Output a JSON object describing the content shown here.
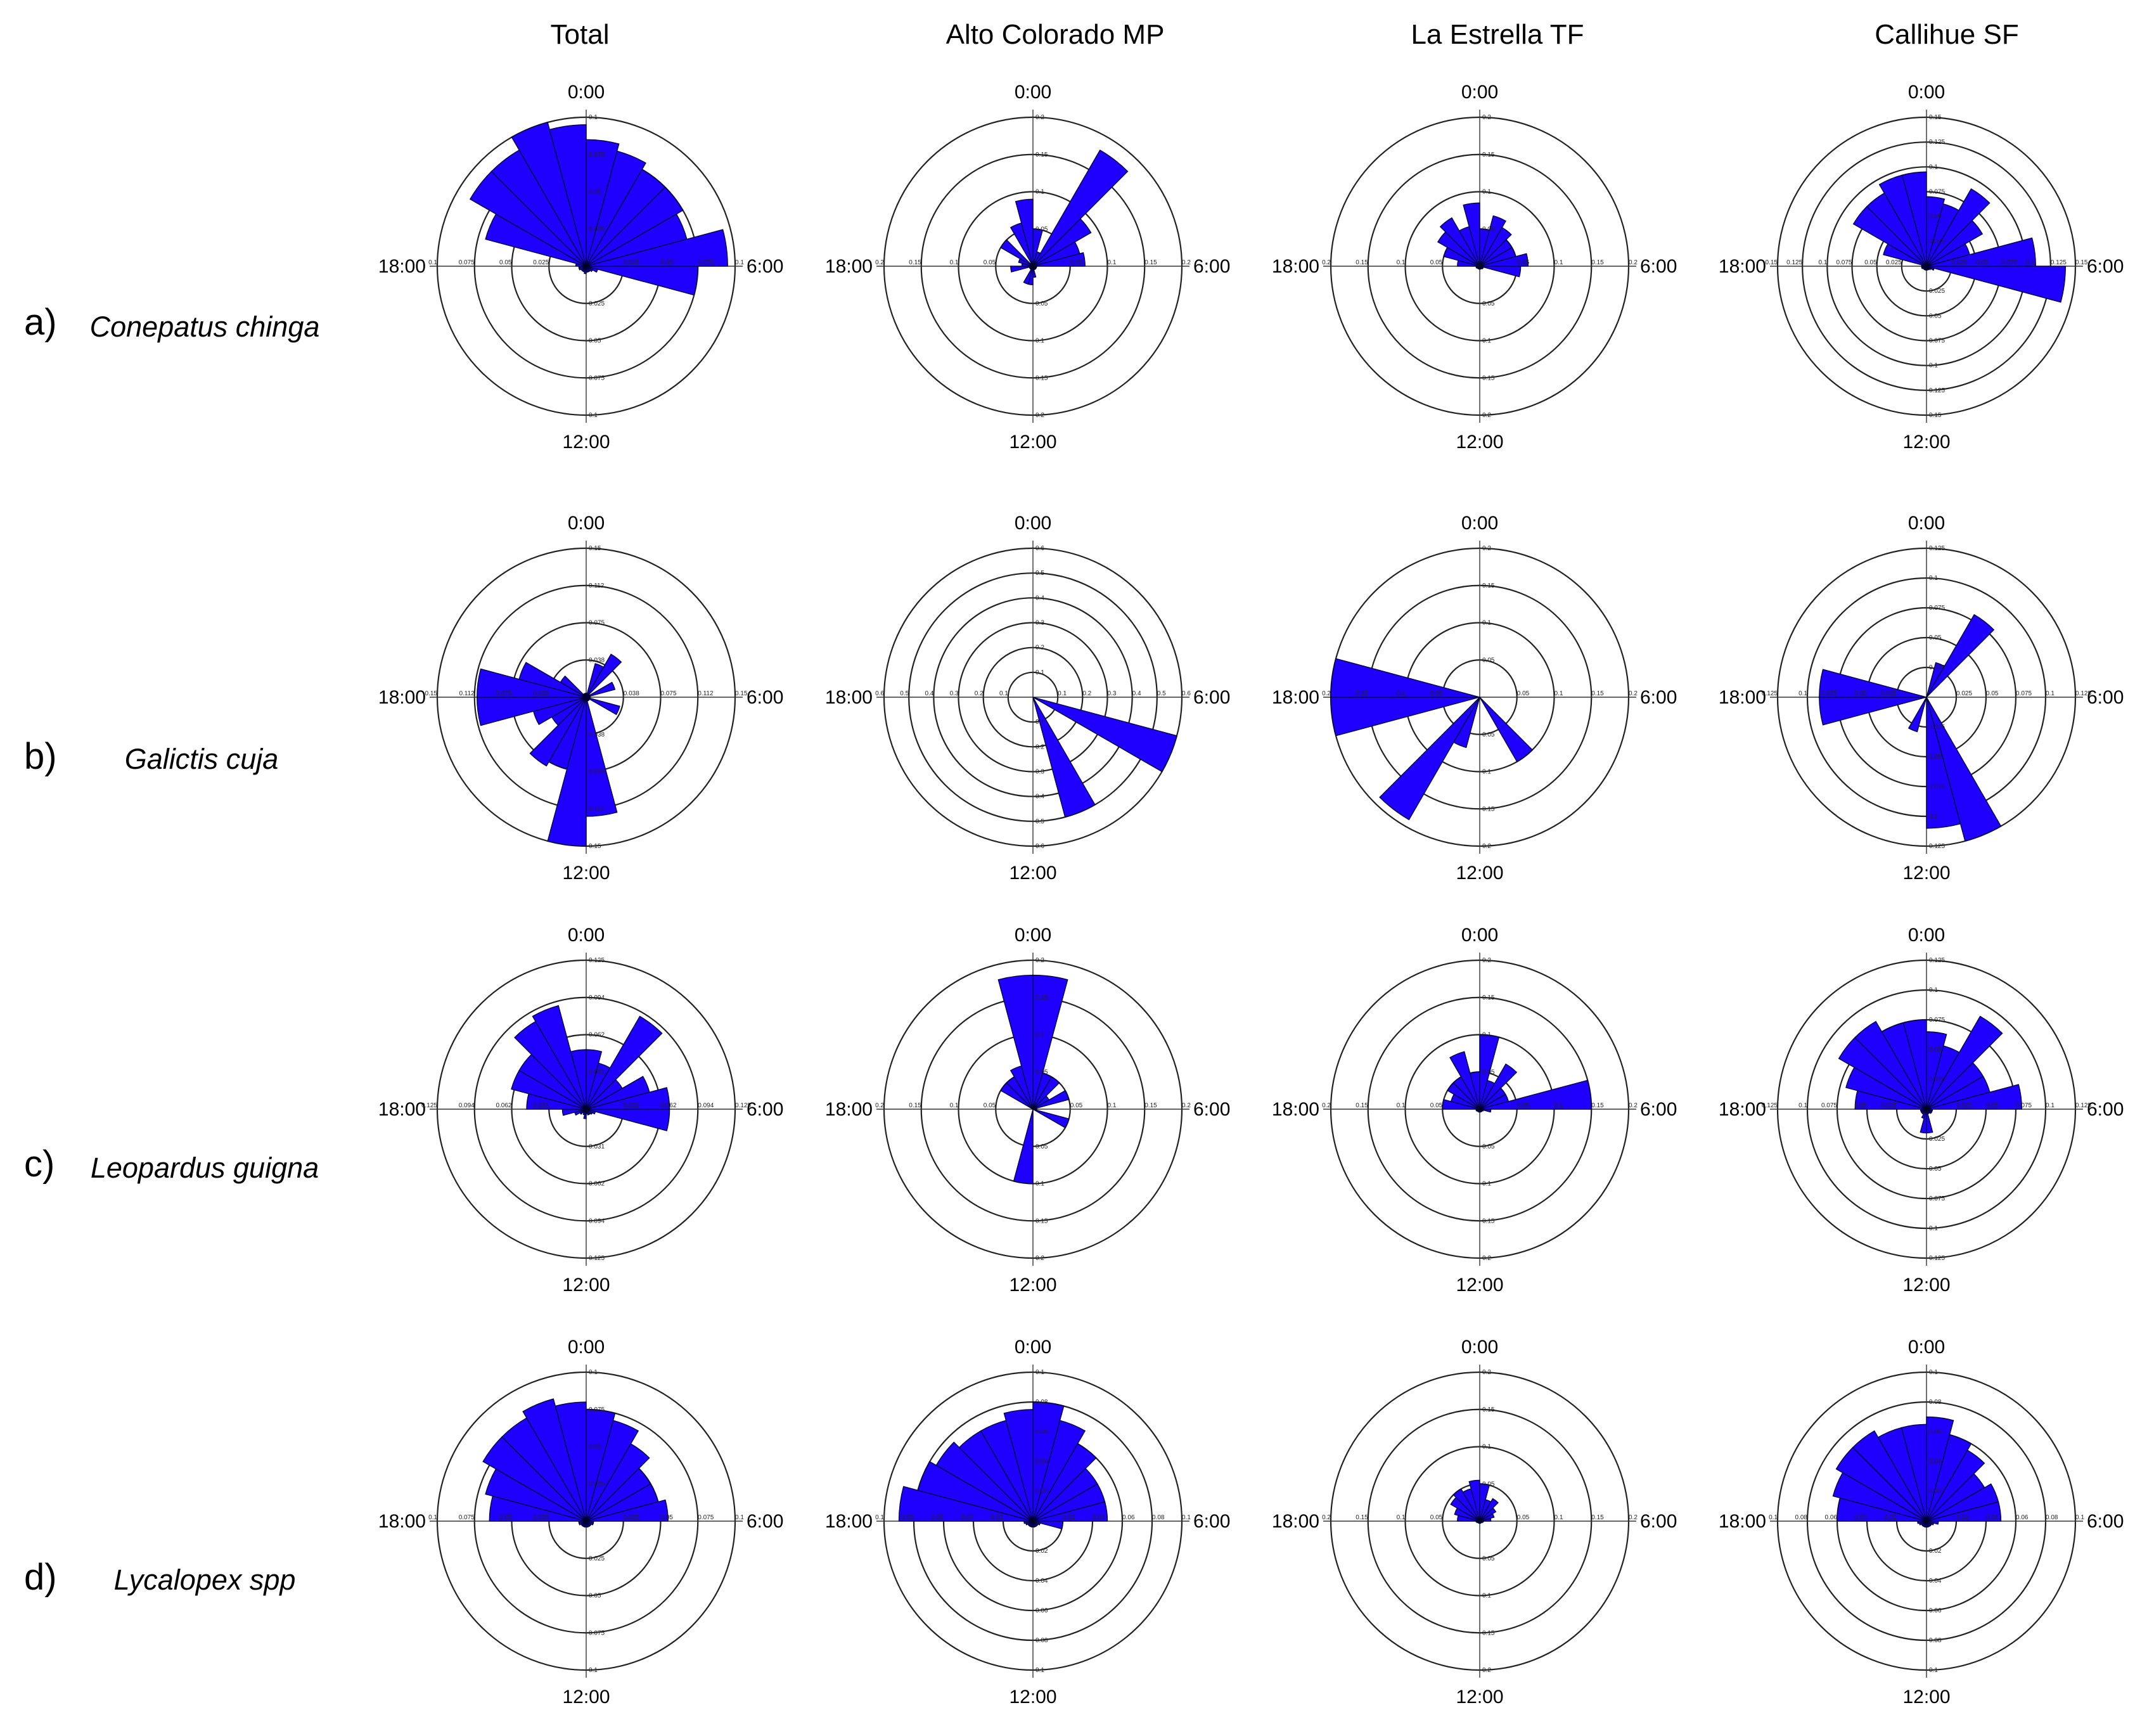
{
  "figure": {
    "columns": [
      "Total",
      "Alto Colorado MP",
      "La Estrella TF",
      "Callihue SF"
    ],
    "rows": [
      {
        "label": "a)",
        "species": "Conepatus chinga"
      },
      {
        "label": "b)",
        "species": "Galictis cuja"
      },
      {
        "label": "c)",
        "species": "Leopardus guigna"
      },
      {
        "label": "d)",
        "species": "Lycalopex spp"
      }
    ],
    "clock_labels": {
      "top": "0:00",
      "right": "6:00",
      "bottom": "12:00",
      "left": "18:00"
    },
    "bar_color": "#1f00ff"
  },
  "chart_data": [
    {
      "type": "rose",
      "row": "Conepatus chinga",
      "column": "Total",
      "hours": [
        0,
        1,
        2,
        3,
        4,
        5,
        6,
        7,
        8,
        9,
        10,
        11,
        12,
        13,
        14,
        15,
        16,
        17,
        18,
        19,
        20,
        21,
        22,
        23
      ],
      "rmax": 0.1,
      "ring_labels": [
        "0.025",
        "0.05",
        "0.075",
        "0.1"
      ],
      "values": [
        0.085,
        0.08,
        0.075,
        0.075,
        0.07,
        0.095,
        0.075,
        0.008,
        0.005,
        0.004,
        0.004,
        0.004,
        0.005,
        0.004,
        0.004,
        0.004,
        0.005,
        0.005,
        0.007,
        0.07,
        0.09,
        0.09,
        0.1,
        0.095
      ]
    },
    {
      "type": "rose",
      "row": "Conepatus chinga",
      "column": "Alto Colorado MP",
      "hours": [
        0,
        1,
        2,
        3,
        4,
        5,
        6,
        7,
        8,
        9,
        10,
        11,
        12,
        13,
        14,
        15,
        16,
        17,
        18,
        19,
        20,
        21,
        22,
        23
      ],
      "rmax": 0.2,
      "ring_labels": [
        "0.05",
        "0.1",
        "0.15",
        "0.2"
      ],
      "values": [
        0.05,
        0.02,
        0.18,
        0.09,
        0.065,
        0.07,
        0.005,
        0.005,
        0.005,
        0.005,
        0.005,
        0.015,
        0.025,
        0.025,
        0.005,
        0.005,
        0.005,
        0.03,
        0.015,
        0.02,
        0.05,
        0.005,
        0.06,
        0.09
      ]
    },
    {
      "type": "rose",
      "row": "Conepatus chinga",
      "column": "La Estrella TF",
      "hours": [
        0,
        1,
        2,
        3,
        4,
        5,
        6,
        7,
        8,
        9,
        10,
        11,
        12,
        13,
        14,
        15,
        16,
        17,
        18,
        19,
        20,
        21,
        22,
        23
      ],
      "rmax": 0.2,
      "ring_labels": [
        "0.05",
        "0.1",
        "0.15",
        "0.2"
      ],
      "values": [
        0.05,
        0.07,
        0.06,
        0.05,
        0.05,
        0.065,
        0.055,
        0.005,
        0.005,
        0.004,
        0.004,
        0.004,
        0.004,
        0.004,
        0.004,
        0.004,
        0.005,
        0.005,
        0.03,
        0.05,
        0.065,
        0.075,
        0.055,
        0.085
      ]
    },
    {
      "type": "rose",
      "row": "Conepatus chinga",
      "column": "Callihue SF",
      "hours": [
        0,
        1,
        2,
        3,
        4,
        5,
        6,
        7,
        8,
        9,
        10,
        11,
        12,
        13,
        14,
        15,
        16,
        17,
        18,
        19,
        20,
        21,
        22,
        23
      ],
      "rmax": 0.15,
      "ring_labels": [
        "0.025",
        "0.05",
        "0.075",
        "0.1",
        "0.125",
        "0.15"
      ],
      "values": [
        0.07,
        0.065,
        0.09,
        0.065,
        0.045,
        0.11,
        0.14,
        0.008,
        0.005,
        0.004,
        0.004,
        0.004,
        0.004,
        0.004,
        0.004,
        0.004,
        0.005,
        0.005,
        0.005,
        0.045,
        0.085,
        0.085,
        0.095,
        0.095
      ]
    },
    {
      "type": "rose",
      "row": "Galictis cuja",
      "column": "Total",
      "hours": [
        0,
        1,
        2,
        3,
        4,
        5,
        6,
        7,
        8,
        9,
        10,
        11,
        12,
        13,
        14,
        15,
        16,
        17,
        18,
        19,
        20,
        21,
        22,
        23
      ],
      "rmax": 0.15,
      "ring_labels": [
        "0.038",
        "0.075",
        "0.112",
        "0.15"
      ],
      "values": [
        0.004,
        0.035,
        0.05,
        0.004,
        0.03,
        0.004,
        0.004,
        0.035,
        0.004,
        0.004,
        0.004,
        0.12,
        0.15,
        0.075,
        0.08,
        0.04,
        0.055,
        0.11,
        0.11,
        0.07,
        0.03,
        0.004,
        0.004,
        0.004
      ]
    },
    {
      "type": "rose",
      "row": "Galictis cuja",
      "column": "Alto Colorado MP",
      "hours": [
        0,
        1,
        2,
        3,
        4,
        5,
        6,
        7,
        8,
        9,
        10,
        11,
        12,
        13,
        14,
        15,
        16,
        17,
        18,
        19,
        20,
        21,
        22,
        23
      ],
      "rmax": 0.6,
      "ring_labels": [
        "0.1",
        "0.2",
        "0.3",
        "0.4",
        "0.5",
        "0.6"
      ],
      "values": [
        0,
        0,
        0,
        0,
        0,
        0,
        0,
        0.6,
        0,
        0,
        0.5,
        0,
        0,
        0,
        0,
        0,
        0,
        0,
        0,
        0,
        0,
        0,
        0,
        0
      ]
    },
    {
      "type": "rose",
      "row": "Galictis cuja",
      "column": "La Estrella TF",
      "hours": [
        0,
        1,
        2,
        3,
        4,
        5,
        6,
        7,
        8,
        9,
        10,
        11,
        12,
        13,
        14,
        15,
        16,
        17,
        18,
        19,
        20,
        21,
        22,
        23
      ],
      "rmax": 0.2,
      "ring_labels": [
        "0.05",
        "0.1",
        "0.15",
        "0.2"
      ],
      "values": [
        0,
        0,
        0,
        0,
        0,
        0,
        0,
        0,
        0,
        0.1,
        0,
        0,
        0,
        0.07,
        0.19,
        0,
        0,
        0.2,
        0.2,
        0,
        0,
        0,
        0,
        0
      ]
    },
    {
      "type": "rose",
      "row": "Galictis cuja",
      "column": "Callihue SF",
      "hours": [
        0,
        1,
        2,
        3,
        4,
        5,
        6,
        7,
        8,
        9,
        10,
        11,
        12,
        13,
        14,
        15,
        16,
        17,
        18,
        19,
        20,
        21,
        22,
        23
      ],
      "rmax": 0.125,
      "ring_labels": [
        "0.025",
        "0.05",
        "0.075",
        "0.1",
        "0.125"
      ],
      "values": [
        0,
        0.03,
        0.08,
        0,
        0,
        0,
        0,
        0,
        0,
        0,
        0.125,
        0.11,
        0,
        0.03,
        0,
        0,
        0,
        0.09,
        0.09,
        0,
        0,
        0,
        0,
        0
      ]
    },
    {
      "type": "rose",
      "row": "Leopardus guigna",
      "column": "Total",
      "hours": [
        0,
        1,
        2,
        3,
        4,
        5,
        6,
        7,
        8,
        9,
        10,
        11,
        12,
        13,
        14,
        15,
        16,
        17,
        18,
        19,
        20,
        21,
        22,
        23
      ],
      "rmax": 0.125,
      "ring_labels": [
        "0.031",
        "0.062",
        "0.094",
        "0.125"
      ],
      "values": [
        0.05,
        0.04,
        0.09,
        0.035,
        0.055,
        0.07,
        0.07,
        0.008,
        0.006,
        0.005,
        0.005,
        0.004,
        0.008,
        0.005,
        0.004,
        0.006,
        0.01,
        0.02,
        0.05,
        0.065,
        0.065,
        0.085,
        0.09,
        0.05
      ]
    },
    {
      "type": "rose",
      "row": "Leopardus guigna",
      "column": "Alto Colorado MP",
      "hours": [
        0,
        1,
        2,
        3,
        4,
        5,
        6,
        7,
        8,
        9,
        10,
        11,
        12,
        13,
        14,
        15,
        16,
        17,
        18,
        19,
        20,
        21,
        22,
        23
      ],
      "rmax": 0.2,
      "ring_labels": [
        "0.05",
        "0.1",
        "0.15",
        "0.2"
      ],
      "values": [
        0.18,
        0.05,
        0.05,
        0.025,
        0.05,
        0.005,
        0.005,
        0.05,
        0,
        0,
        0,
        0,
        0.1,
        0,
        0,
        0,
        0,
        0,
        0,
        0,
        0.05,
        0.05,
        0.06,
        0.18
      ]
    },
    {
      "type": "rose",
      "row": "Leopardus guigna",
      "column": "La Estrella TF",
      "hours": [
        0,
        1,
        2,
        3,
        4,
        5,
        6,
        7,
        8,
        9,
        10,
        11,
        12,
        13,
        14,
        15,
        16,
        17,
        18,
        19,
        20,
        21,
        22,
        23
      ],
      "rmax": 0.2,
      "ring_labels": [
        "0.05",
        "0.1",
        "0.15",
        "0.2"
      ],
      "values": [
        0.1,
        0.04,
        0.07,
        0.04,
        0.04,
        0.15,
        0.015,
        0.005,
        0.004,
        0.004,
        0.004,
        0.004,
        0.004,
        0.004,
        0.004,
        0.004,
        0.005,
        0.005,
        0.05,
        0.04,
        0.05,
        0.05,
        0.08,
        0.05
      ]
    },
    {
      "type": "rose",
      "row": "Leopardus guigna",
      "column": "Callihue SF",
      "hours": [
        0,
        1,
        2,
        3,
        4,
        5,
        6,
        7,
        8,
        9,
        10,
        11,
        12,
        13,
        14,
        15,
        16,
        17,
        18,
        19,
        20,
        21,
        22,
        23
      ],
      "rmax": 0.125,
      "ring_labels": [
        "0.025",
        "0.05",
        "0.075",
        "0.1",
        "0.125"
      ],
      "values": [
        0.065,
        0.055,
        0.09,
        0.055,
        0.055,
        0.08,
        0.005,
        0.005,
        0.005,
        0.004,
        0.004,
        0.02,
        0.02,
        0.008,
        0.005,
        0.005,
        0.005,
        0.005,
        0.06,
        0.07,
        0.085,
        0.085,
        0.075,
        0.075
      ]
    },
    {
      "type": "rose",
      "row": "Lycalopex spp",
      "column": "Total",
      "hours": [
        0,
        1,
        2,
        3,
        4,
        5,
        6,
        7,
        8,
        9,
        10,
        11,
        12,
        13,
        14,
        15,
        16,
        17,
        18,
        19,
        20,
        21,
        22,
        23
      ],
      "rmax": 0.1,
      "ring_labels": [
        "0.025",
        "0.05",
        "0.075",
        "0.1"
      ],
      "values": [
        0.075,
        0.07,
        0.06,
        0.05,
        0.05,
        0.055,
        0.005,
        0.005,
        0.004,
        0.004,
        0.004,
        0.004,
        0.004,
        0.004,
        0.004,
        0.004,
        0.005,
        0.005,
        0.065,
        0.07,
        0.08,
        0.08,
        0.085,
        0.08
      ]
    },
    {
      "type": "rose",
      "row": "Lycalopex spp",
      "column": "Alto Colorado MP",
      "hours": [
        0,
        1,
        2,
        3,
        4,
        5,
        6,
        7,
        8,
        9,
        10,
        11,
        12,
        13,
        14,
        15,
        16,
        17,
        18,
        19,
        20,
        21,
        22,
        23
      ],
      "rmax": 0.1,
      "ring_labels": [
        "0.02",
        "0.04",
        "0.06",
        "0.08",
        "0.1"
      ],
      "values": [
        0.08,
        0.07,
        0.06,
        0.05,
        0.05,
        0.05,
        0.02,
        0.005,
        0.004,
        0.004,
        0.004,
        0.004,
        0.004,
        0.004,
        0.004,
        0.004,
        0.005,
        0.006,
        0.09,
        0.08,
        0.075,
        0.07,
        0.07,
        0.075
      ]
    },
    {
      "type": "rose",
      "row": "Lycalopex spp",
      "column": "La Estrella TF",
      "hours": [
        0,
        1,
        2,
        3,
        4,
        5,
        6,
        7,
        8,
        9,
        10,
        11,
        12,
        13,
        14,
        15,
        16,
        17,
        18,
        19,
        20,
        21,
        22,
        23
      ],
      "rmax": 0.2,
      "ring_labels": [
        "0.05",
        "0.1",
        "0.15",
        "0.2"
      ],
      "values": [
        0.05,
        0.03,
        0.035,
        0.025,
        0.02,
        0.015,
        0.005,
        0.004,
        0.003,
        0.003,
        0.003,
        0.003,
        0.003,
        0.003,
        0.003,
        0.003,
        0.004,
        0.005,
        0.03,
        0.035,
        0.045,
        0.05,
        0.045,
        0.055
      ]
    },
    {
      "type": "rose",
      "row": "Lycalopex spp",
      "column": "Callihue SF",
      "hours": [
        0,
        1,
        2,
        3,
        4,
        5,
        6,
        7,
        8,
        9,
        10,
        11,
        12,
        13,
        14,
        15,
        16,
        17,
        18,
        19,
        20,
        21,
        22,
        23
      ],
      "rmax": 0.1,
      "ring_labels": [
        "0.02",
        "0.04",
        "0.06",
        "0.08",
        "0.1"
      ],
      "values": [
        0.07,
        0.06,
        0.055,
        0.045,
        0.05,
        0.05,
        0.008,
        0.005,
        0.004,
        0.004,
        0.004,
        0.004,
        0.004,
        0.004,
        0.004,
        0.004,
        0.005,
        0.006,
        0.06,
        0.065,
        0.07,
        0.07,
        0.065,
        0.065
      ]
    }
  ]
}
